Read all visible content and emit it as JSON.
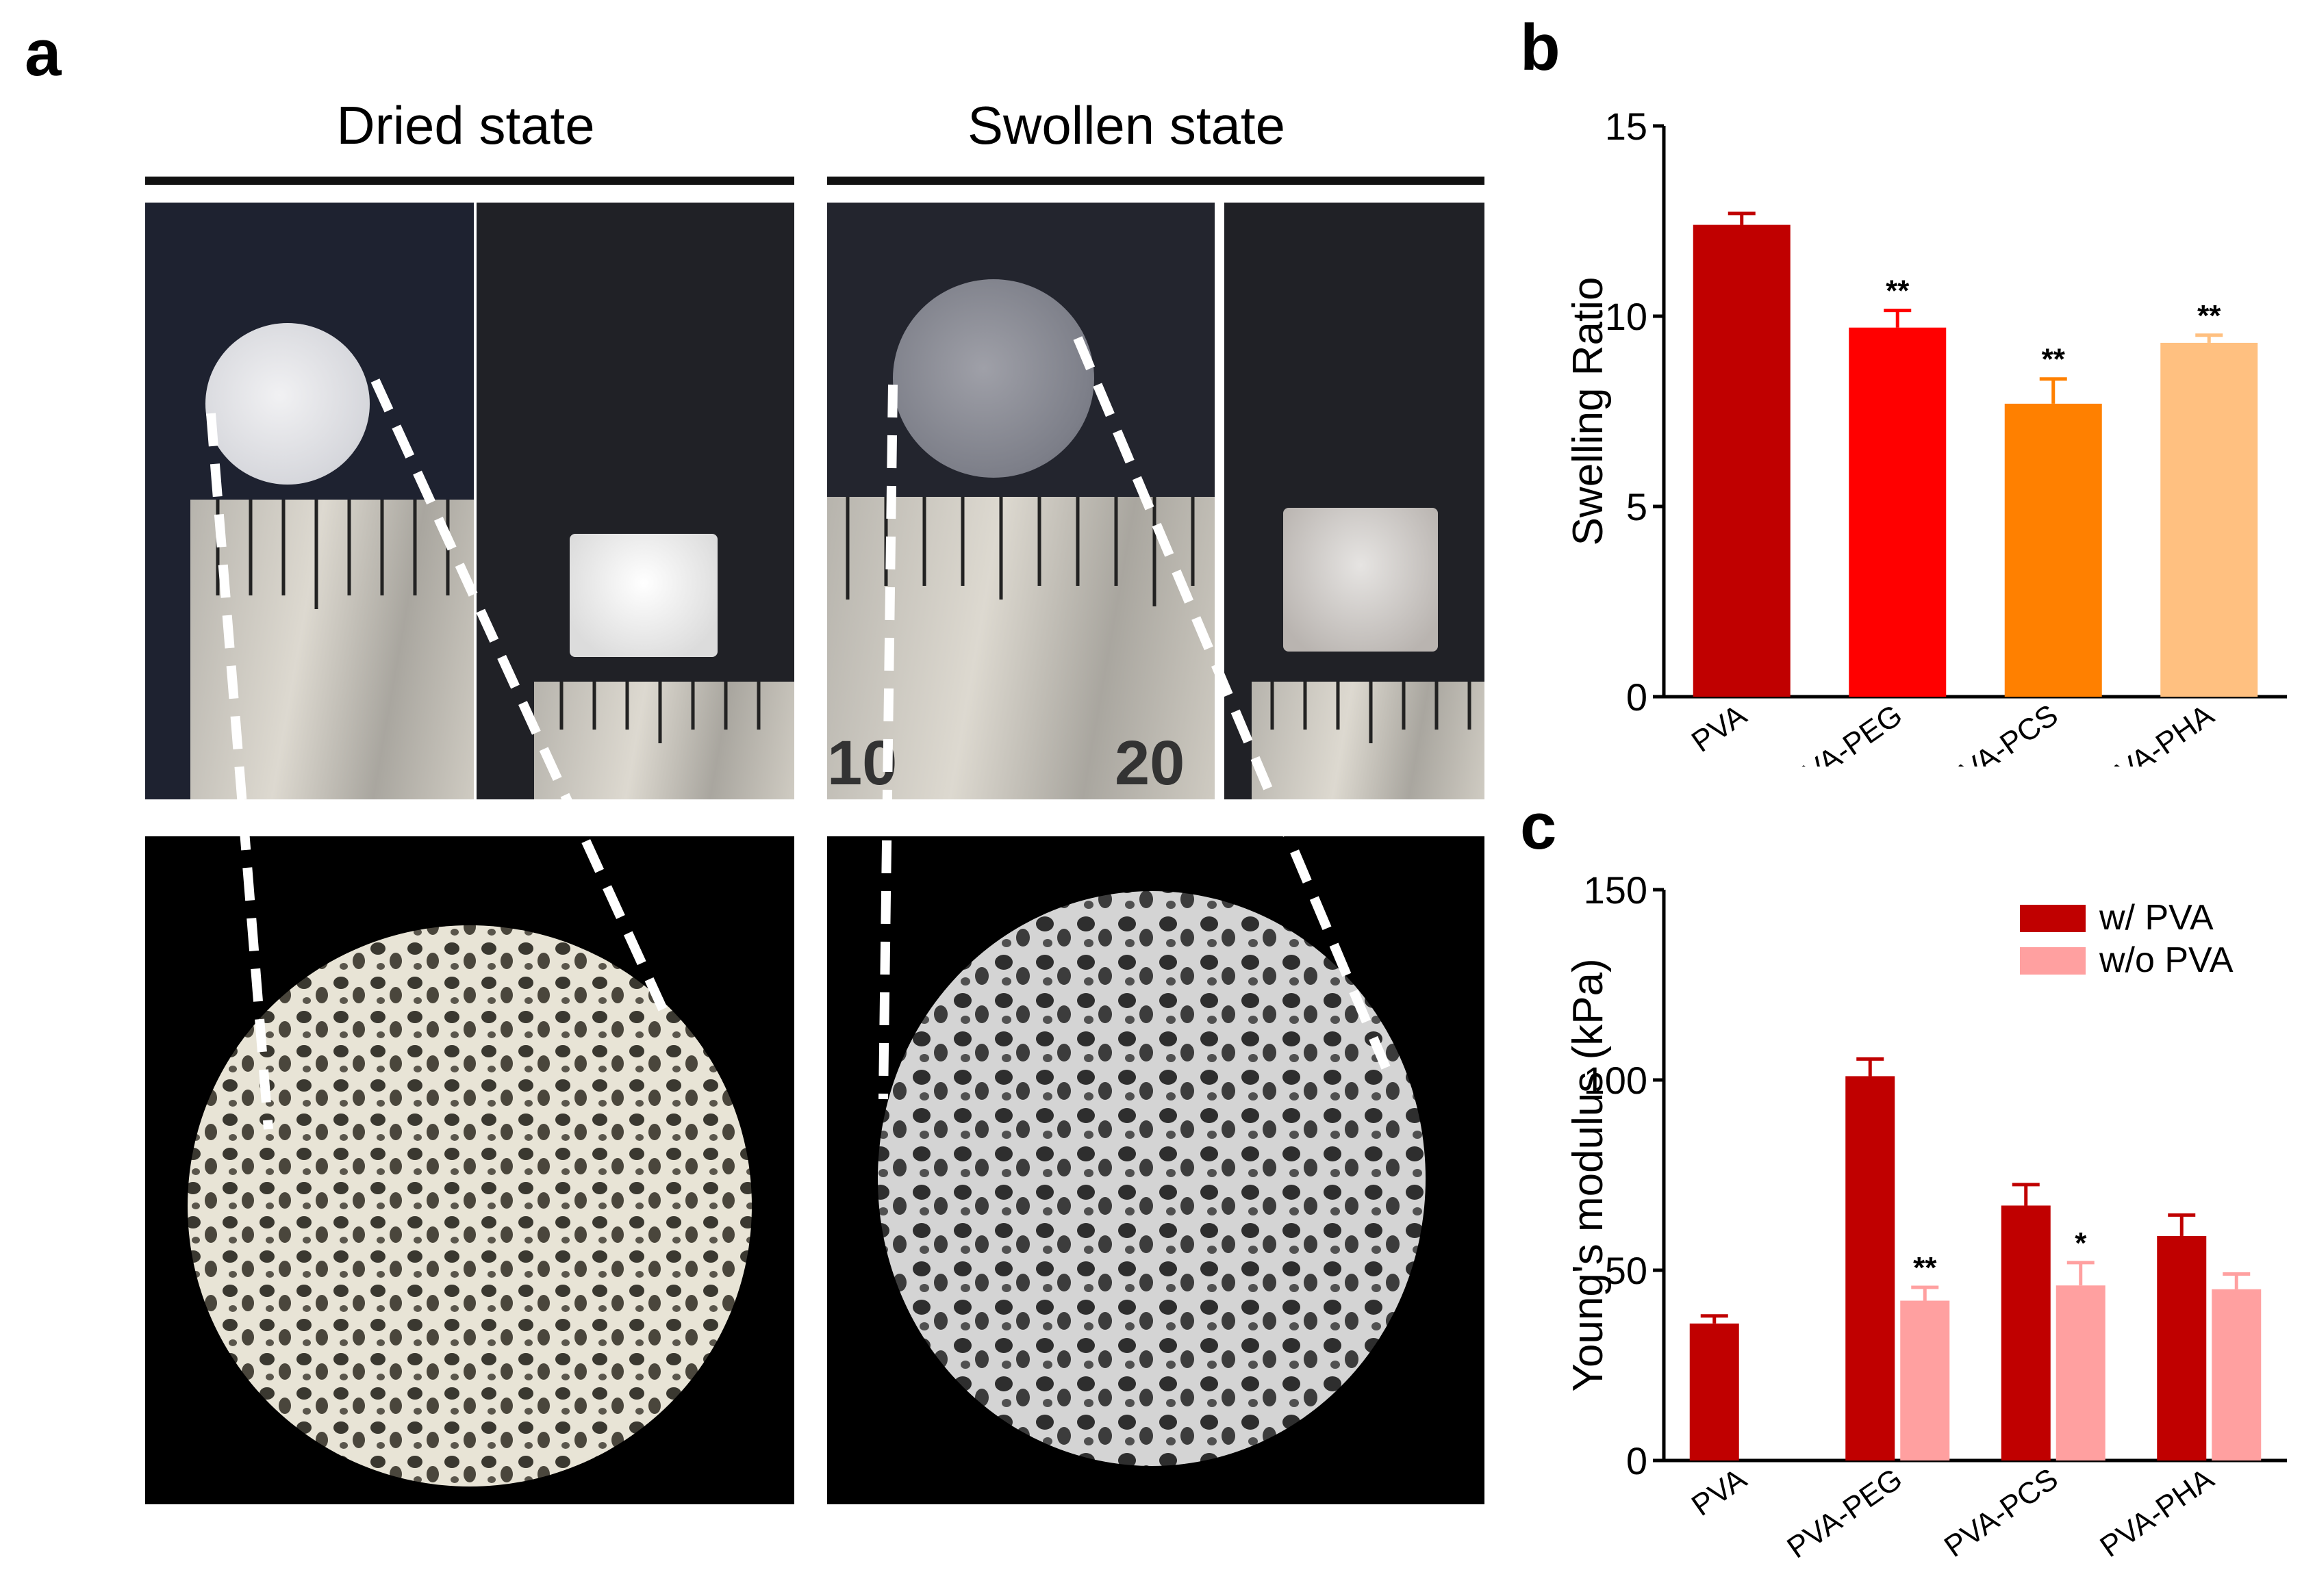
{
  "panels": {
    "a": "a",
    "b": "b",
    "c": "c"
  },
  "panel_a": {
    "dried_title": "Dried state",
    "swollen_title": "Swollen state",
    "ruler_numbers": [
      "10",
      "20"
    ]
  },
  "chart_data": [
    {
      "type": "bar",
      "panel": "b",
      "categories": [
        "PVA",
        "PVA-PEG",
        "PVA-PCS",
        "PVA-PHA"
      ],
      "values": [
        12.4,
        9.7,
        7.7,
        9.3
      ],
      "errors": [
        0.3,
        0.45,
        0.65,
        0.2
      ],
      "significance": [
        "",
        "**",
        "**",
        "**"
      ],
      "colors": [
        "#c00000",
        "#ff0000",
        "#ff8000",
        "#ffc080"
      ],
      "ylabel": "Swelling Ratio",
      "xlabel": "",
      "ylim": [
        0,
        15
      ],
      "yticks": [
        0,
        5,
        10,
        15
      ],
      "grid": false
    },
    {
      "type": "bar",
      "panel": "c",
      "categories": [
        "PVA",
        "PVA-PEG",
        "PVA-PCS",
        "PVA-PHA"
      ],
      "series": [
        {
          "name": "w/ PVA",
          "color": "#c00000",
          "values": [
            36,
            101,
            67,
            59
          ],
          "errors": [
            2,
            4.5,
            5.5,
            5.5
          ],
          "significance": [
            "",
            "",
            "",
            ""
          ]
        },
        {
          "name": "w/o PVA",
          "color": "#ffa0a0",
          "values": [
            null,
            42,
            46,
            45
          ],
          "errors": [
            null,
            3.5,
            6,
            4
          ],
          "significance": [
            "",
            "**",
            "*",
            ""
          ]
        }
      ],
      "ylabel": "Young's modulus (kPa)",
      "xlabel": "",
      "ylim": [
        0,
        150
      ],
      "yticks": [
        0,
        50,
        100,
        150
      ],
      "legend_position": "top-right",
      "grid": false
    }
  ]
}
